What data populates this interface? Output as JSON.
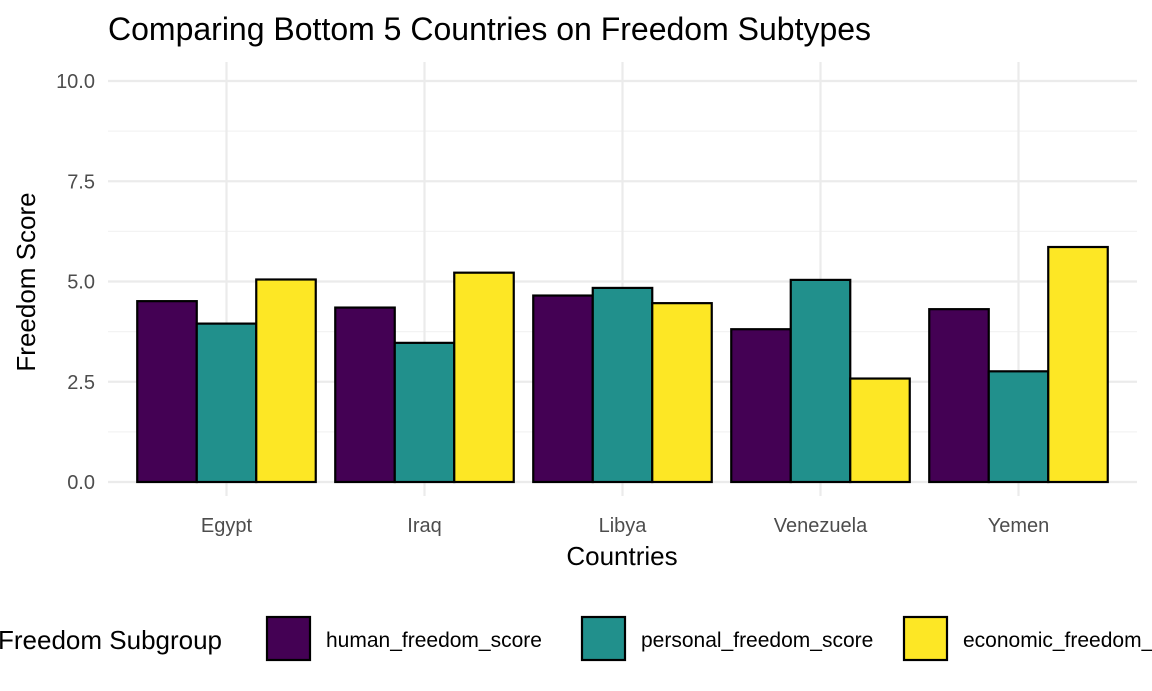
{
  "chart_data": {
    "type": "bar",
    "title": "Comparing Bottom 5 Countries on Freedom Subtypes",
    "xlabel": "Countries",
    "ylabel": "Freedom Score",
    "categories": [
      "Egypt",
      "Iraq",
      "Libya",
      "Venezuela",
      "Yemen"
    ],
    "series": [
      {
        "name": "human_freedom_score",
        "color": "#440154",
        "values": [
          4.51,
          4.35,
          4.65,
          3.81,
          4.31
        ]
      },
      {
        "name": "personal_freedom_score",
        "color": "#21908C",
        "values": [
          3.95,
          3.47,
          4.84,
          5.04,
          2.76
        ]
      },
      {
        "name": "economic_freedom_score",
        "color": "#FDE725",
        "values": [
          5.05,
          5.22,
          4.46,
          2.58,
          5.86
        ]
      }
    ],
    "ylim": [
      0,
      10
    ],
    "yticks": [
      "0.0",
      "2.5",
      "5.0",
      "7.5",
      "10.0"
    ],
    "ytick_values": [
      0,
      2.5,
      5,
      7.5,
      10
    ],
    "legend": {
      "title": "Freedom Subgroup",
      "position": "bottom"
    },
    "grid": true
  }
}
